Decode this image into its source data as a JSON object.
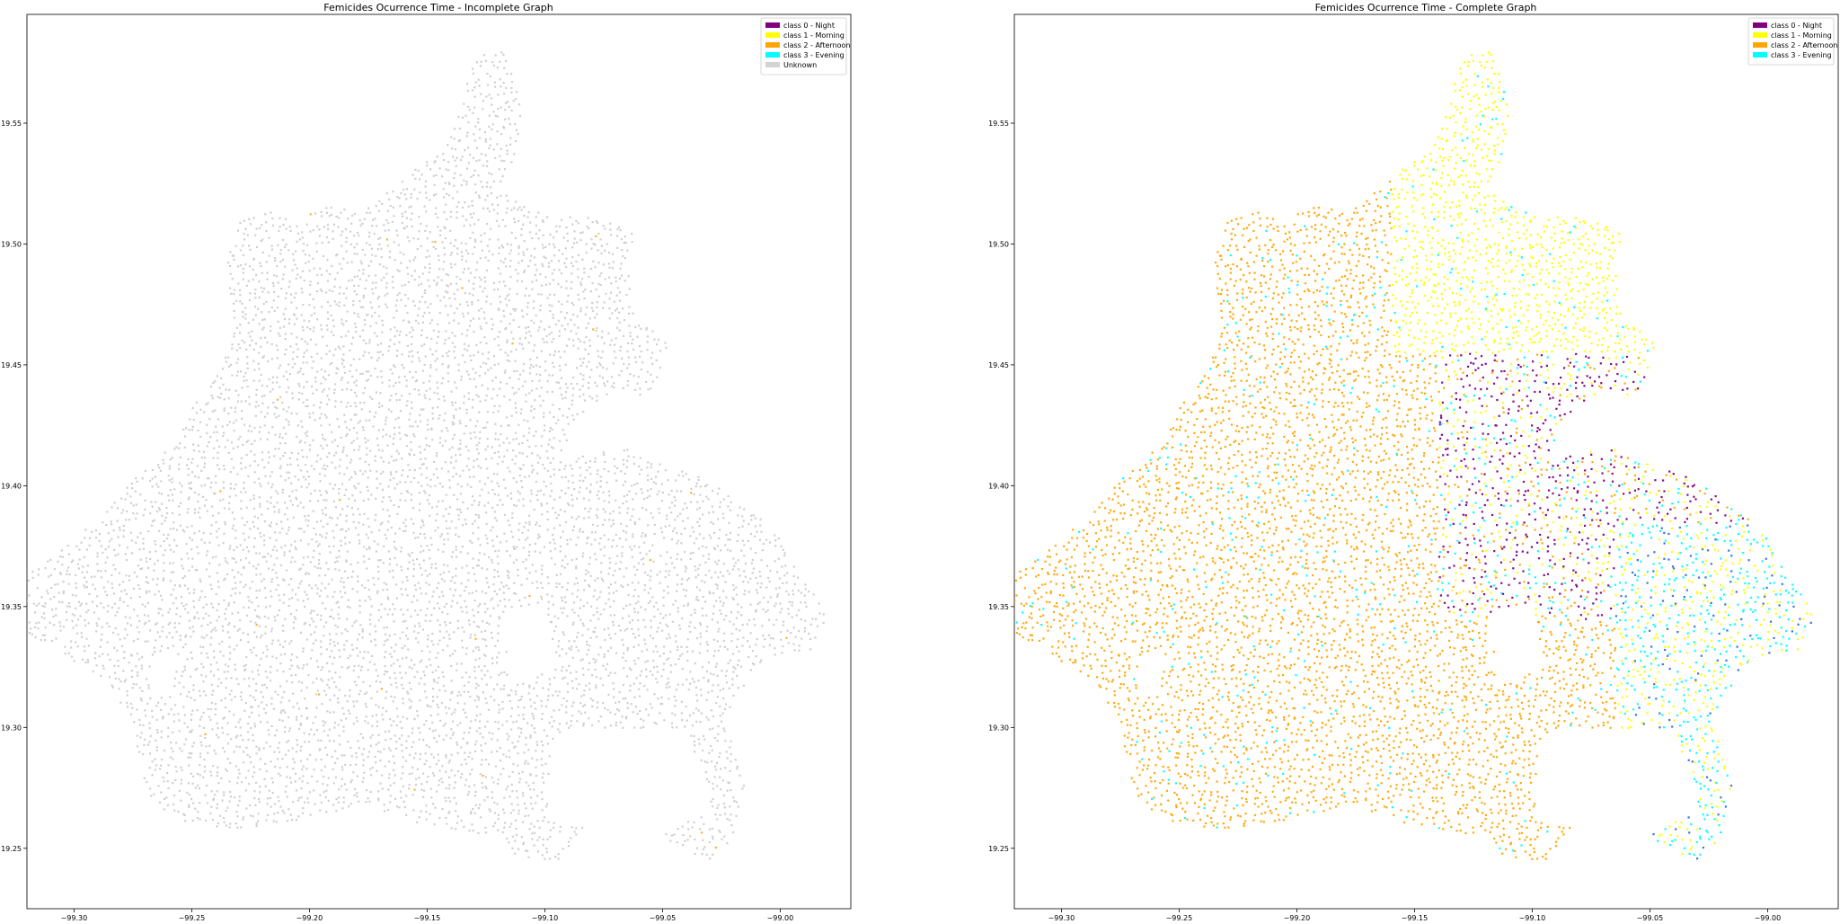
{
  "chart_data": [
    {
      "type": "scatter",
      "title": "Femicides Ocurrence Time - Incomplete Graph",
      "xlabel": "",
      "ylabel": "",
      "xlim": [
        -99.32,
        -98.97
      ],
      "ylim": [
        19.225,
        19.595
      ],
      "x_ticks": [
        -99.3,
        -99.25,
        -99.2,
        -99.15,
        -99.1,
        -99.05,
        -99.0
      ],
      "x_tick_labels": [
        "−99.30",
        "−99.25",
        "−99.20",
        "−99.15",
        "−99.10",
        "−99.05",
        "−99.00"
      ],
      "y_ticks": [
        19.25,
        19.3,
        19.35,
        19.4,
        19.45,
        19.5,
        19.55
      ],
      "y_tick_labels": [
        "19.25",
        "19.30",
        "19.35",
        "19.40",
        "19.45",
        "19.50",
        "19.55"
      ],
      "grid": false,
      "legend_position": "top-right",
      "legend": [
        {
          "label": "class 0 - Night",
          "color": "#800080"
        },
        {
          "label": "class 1 - Morning",
          "color": "#ffff00"
        },
        {
          "label": "class 2 - Afternoon",
          "color": "#ffa500"
        },
        {
          "label": "class 3 - Evening",
          "color": "#00ffff"
        },
        {
          "label": "Unknown",
          "color": "#d3d3d3"
        }
      ],
      "series": [
        {
          "class": "unknown",
          "color": "#c8c8c8",
          "share": 0.998
        },
        {
          "class": "labeled",
          "color": "#ffa500",
          "share": 0.002
        }
      ]
    },
    {
      "type": "scatter",
      "title": "Femicides Ocurrence Time - Complete Graph",
      "xlabel": "",
      "ylabel": "",
      "xlim": [
        -99.32,
        -98.97
      ],
      "ylim": [
        19.225,
        19.595
      ],
      "x_ticks": [
        -99.3,
        -99.25,
        -99.2,
        -99.15,
        -99.1,
        -99.05,
        -99.0
      ],
      "x_tick_labels": [
        "−99.30",
        "−99.25",
        "−99.20",
        "−99.15",
        "−99.10",
        "−99.05",
        "−99.00"
      ],
      "y_ticks": [
        19.25,
        19.3,
        19.35,
        19.4,
        19.45,
        19.5,
        19.55
      ],
      "y_tick_labels": [
        "19.25",
        "19.30",
        "19.35",
        "19.40",
        "19.45",
        "19.50",
        "19.55"
      ],
      "grid": false,
      "legend_position": "top-right",
      "legend": [
        {
          "label": "class 0 - Night",
          "color": "#800080"
        },
        {
          "label": "class 1 - Morning",
          "color": "#ffff00"
        },
        {
          "label": "class 2 - Afternoon",
          "color": "#ffa500"
        },
        {
          "label": "class 3 - Evening",
          "color": "#00ffff"
        }
      ],
      "series": [
        {
          "class": "class 0 - Night",
          "color": "#800080"
        },
        {
          "class": "class 1 - Morning",
          "color": "#ffff00"
        },
        {
          "class": "class 2 - Afternoon",
          "color": "#ffa500"
        },
        {
          "class": "class 3 - Evening",
          "color": "#00ffff"
        }
      ]
    }
  ]
}
